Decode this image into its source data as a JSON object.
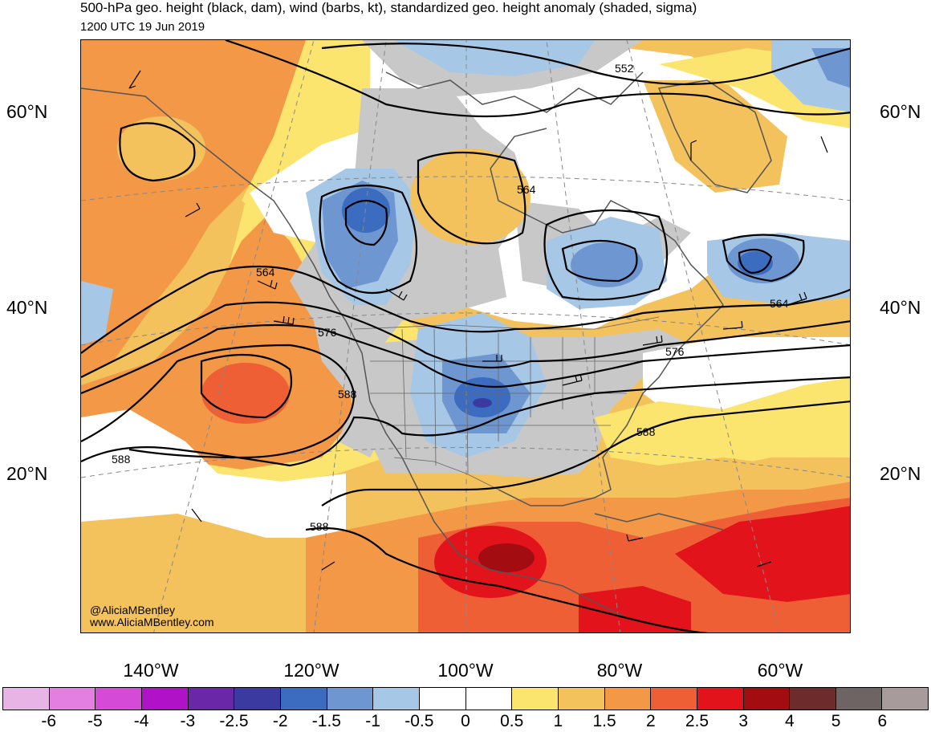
{
  "header": {
    "title": "500-hPa geo. height (black, dam), wind (barbs, kt), standardized geo. height anomaly (shaded, sigma)",
    "valid_time": "1200 UTC 19 Jun 2019"
  },
  "map": {
    "latitude_labels": [
      "60°N",
      "40°N",
      "20°N"
    ],
    "longitude_labels": [
      "140°W",
      "120°W",
      "100°W",
      "80°W",
      "60°W"
    ],
    "contour_labels": [
      "552",
      "564",
      "564",
      "564",
      "576",
      "576",
      "588",
      "588",
      "588",
      "588"
    ],
    "credits": [
      "@AliciaMBentley",
      "www.AliciaMBentley.com"
    ]
  },
  "colorbar": {
    "tick_labels": [
      "-6",
      "-5",
      "-4",
      "-3",
      "-2.5",
      "-2",
      "-1.5",
      "-1",
      "-0.5",
      "0",
      "0.5",
      "1",
      "1.5",
      "2",
      "2.5",
      "3",
      "4",
      "5",
      "6"
    ],
    "colors": [
      "#e8b4e6",
      "#e47fe2",
      "#d54ad6",
      "#b012c8",
      "#6a28a8",
      "#3a3aa0",
      "#3c6cc0",
      "#6e97d2",
      "#a6c7e6",
      "#ffffff",
      "#ffffff",
      "#fbe56e",
      "#f4c25c",
      "#f29847",
      "#ef5f35",
      "#e3131b",
      "#a30d12",
      "#6d2b2c",
      "#6e6463",
      "#a79b9b"
    ]
  }
}
